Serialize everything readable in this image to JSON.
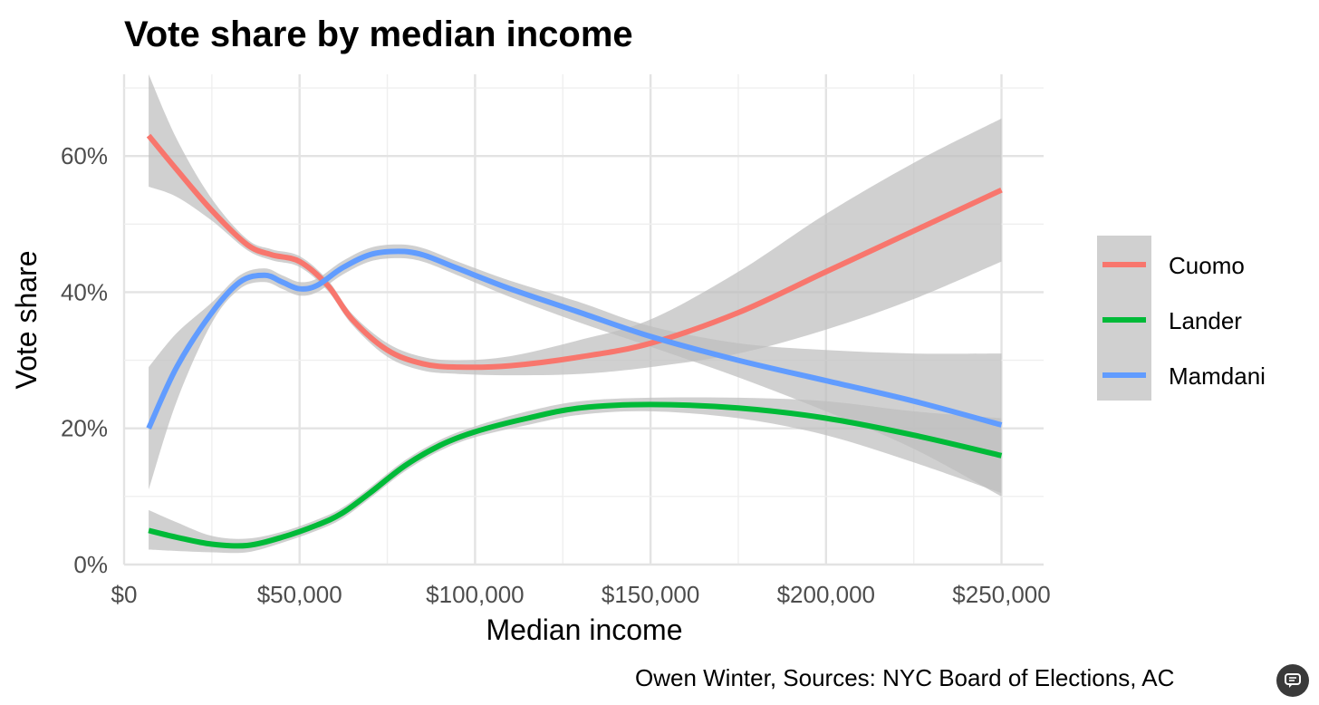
{
  "chart_data": {
    "type": "line",
    "title": "Vote share by median income",
    "xlabel": "Median income",
    "ylabel": "Vote share",
    "caption": "Owen Winter, Sources: NYC Board of Elections, AC",
    "xlim": [
      0,
      262000
    ],
    "ylim": [
      0,
      0.72
    ],
    "x_ticks": [
      0,
      50000,
      100000,
      150000,
      200000,
      250000
    ],
    "x_tick_labels": [
      "$0",
      "$50,000",
      "$100,000",
      "$150,000",
      "$200,000",
      "$250,000"
    ],
    "y_ticks": [
      0,
      0.2,
      0.4,
      0.6
    ],
    "y_tick_labels": [
      "0%",
      "20%",
      "40%",
      "60%"
    ],
    "grid": true,
    "confidence_band_color": "#bebebe",
    "legend_position": "right",
    "series": [
      {
        "name": "Cuomo",
        "color": "#F8766D",
        "x": [
          7000,
          15000,
          25000,
          35000,
          42000,
          50000,
          58000,
          65000,
          75000,
          85000,
          95000,
          110000,
          130000,
          150000,
          175000,
          200000,
          225000,
          250000
        ],
        "y": [
          0.63,
          0.58,
          0.52,
          0.47,
          0.455,
          0.445,
          0.41,
          0.36,
          0.315,
          0.295,
          0.29,
          0.292,
          0.305,
          0.325,
          0.37,
          0.43,
          0.49,
          0.55
        ],
        "lower": [
          0.555,
          0.54,
          0.505,
          0.462,
          0.447,
          0.437,
          0.402,
          0.352,
          0.305,
          0.285,
          0.28,
          0.278,
          0.28,
          0.29,
          0.31,
          0.345,
          0.39,
          0.445
        ],
        "upper": [
          0.72,
          0.625,
          0.537,
          0.478,
          0.463,
          0.453,
          0.418,
          0.368,
          0.325,
          0.305,
          0.3,
          0.306,
          0.33,
          0.36,
          0.43,
          0.515,
          0.59,
          0.655
        ]
      },
      {
        "name": "Lander",
        "color": "#00BA38",
        "x": [
          7000,
          15000,
          25000,
          35000,
          45000,
          55000,
          62000,
          70000,
          80000,
          90000,
          100000,
          115000,
          130000,
          150000,
          175000,
          200000,
          225000,
          250000
        ],
        "y": [
          0.05,
          0.04,
          0.03,
          0.028,
          0.04,
          0.058,
          0.075,
          0.105,
          0.145,
          0.175,
          0.195,
          0.215,
          0.23,
          0.235,
          0.23,
          0.215,
          0.19,
          0.16
        ],
        "lower": [
          0.022,
          0.02,
          0.018,
          0.018,
          0.032,
          0.05,
          0.067,
          0.097,
          0.137,
          0.167,
          0.187,
          0.205,
          0.22,
          0.225,
          0.215,
          0.19,
          0.15,
          0.105
        ],
        "upper": [
          0.08,
          0.062,
          0.042,
          0.038,
          0.048,
          0.066,
          0.083,
          0.113,
          0.153,
          0.183,
          0.203,
          0.225,
          0.24,
          0.245,
          0.245,
          0.24,
          0.225,
          0.215
        ]
      },
      {
        "name": "Mamdani",
        "color": "#619CFF",
        "x": [
          7000,
          15000,
          25000,
          33000,
          40000,
          45000,
          50000,
          55000,
          62000,
          70000,
          78000,
          85000,
          95000,
          110000,
          130000,
          150000,
          175000,
          200000,
          225000,
          250000
        ],
        "y": [
          0.2,
          0.29,
          0.37,
          0.415,
          0.425,
          0.415,
          0.405,
          0.41,
          0.435,
          0.455,
          0.46,
          0.455,
          0.435,
          0.405,
          0.37,
          0.335,
          0.3,
          0.27,
          0.24,
          0.205
        ],
        "lower": [
          0.11,
          0.24,
          0.355,
          0.405,
          0.415,
          0.405,
          0.395,
          0.4,
          0.425,
          0.445,
          0.45,
          0.445,
          0.425,
          0.393,
          0.355,
          0.32,
          0.275,
          0.225,
          0.17,
          0.1
        ],
        "upper": [
          0.29,
          0.34,
          0.385,
          0.425,
          0.435,
          0.425,
          0.415,
          0.42,
          0.445,
          0.465,
          0.47,
          0.465,
          0.445,
          0.417,
          0.385,
          0.35,
          0.325,
          0.315,
          0.31,
          0.31
        ]
      }
    ]
  },
  "ui": {
    "share_icon": "chat-bubble-icon"
  }
}
